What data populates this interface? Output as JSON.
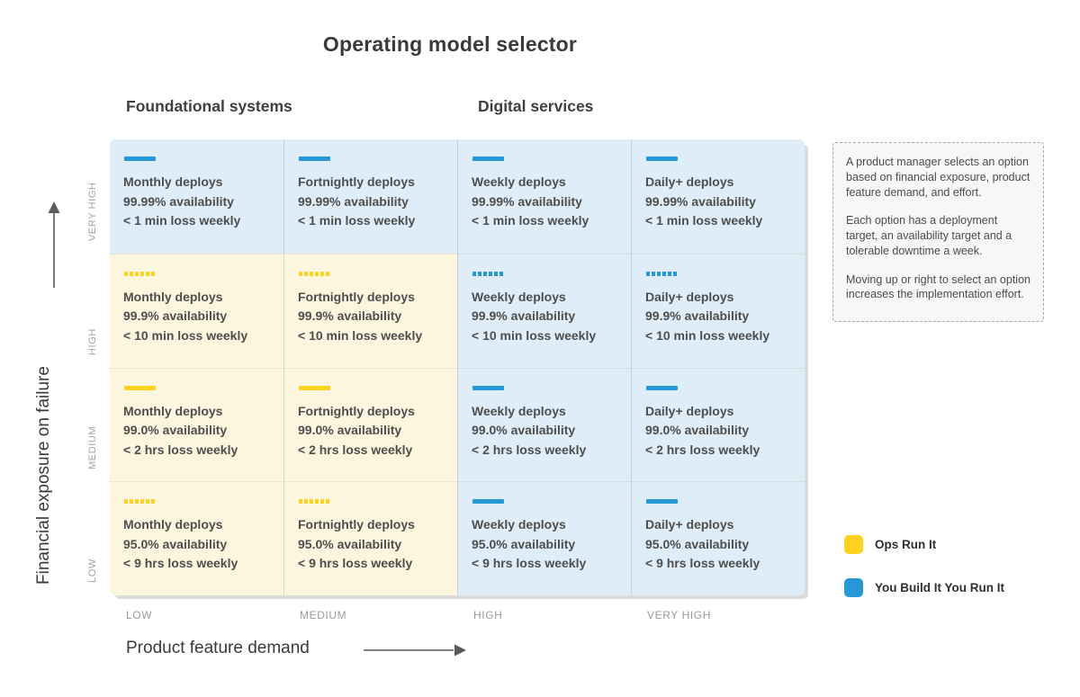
{
  "title": "Operating model selector",
  "group_headers": {
    "foundational": "Foundational systems",
    "digital": "Digital services"
  },
  "x_axis": {
    "label": "Product feature demand",
    "ticks": [
      "LOW",
      "MEDIUM",
      "HIGH",
      "VERY HIGH"
    ]
  },
  "y_axis": {
    "label": "Financial exposure on failure",
    "ticks": [
      "VERY HIGH",
      "HIGH",
      "MEDIUM",
      "LOW"
    ]
  },
  "colors": {
    "ops_bar": "#FFD21E",
    "ops_bg": "#FCF6DF",
    "ybiyri_bar": "#2599D5",
    "ybiyri_bg": "#DEEDF7",
    "arrow": "#5a5a5a"
  },
  "note": {
    "paragraphs": [
      "A product manager selects an option based on financial exposure, product feature demand, and effort.",
      "Each option has a deployment target, an availability target and a tolerable downtime a week.",
      "Moving up or right to select an option increases the implementation effort."
    ]
  },
  "legend": [
    {
      "label": "Ops Run It",
      "color": "#FFD21E"
    },
    {
      "label": "You Build It You Run It",
      "color": "#2599D5"
    }
  ],
  "matrix": {
    "rows": [
      {
        "exposure": "VERY HIGH",
        "cells": [
          {
            "model": "you-build-it-you-run-it",
            "bar": "solid",
            "deploys": "Monthly deploys",
            "availability": "99.99% availability",
            "loss": "< 1 min loss weekly"
          },
          {
            "model": "you-build-it-you-run-it",
            "bar": "solid",
            "deploys": "Fortnightly deploys",
            "availability": "99.99% availability",
            "loss": "< 1 min loss weekly"
          },
          {
            "model": "you-build-it-you-run-it",
            "bar": "solid",
            "deploys": "Weekly deploys",
            "availability": "99.99% availability",
            "loss": "< 1 min loss weekly"
          },
          {
            "model": "you-build-it-you-run-it",
            "bar": "solid",
            "deploys": "Daily+ deploys",
            "availability": "99.99% availability",
            "loss": "< 1 min loss weekly"
          }
        ]
      },
      {
        "exposure": "HIGH",
        "cells": [
          {
            "model": "ops-run-it",
            "bar": "dashed",
            "deploys": "Monthly deploys",
            "availability": "99.9% availability",
            "loss": "< 10 min loss weekly"
          },
          {
            "model": "ops-run-it",
            "bar": "dashed",
            "deploys": "Fortnightly deploys",
            "availability": "99.9% availability",
            "loss": "< 10 min loss weekly"
          },
          {
            "model": "you-build-it-you-run-it",
            "bar": "dashed",
            "deploys": "Weekly deploys",
            "availability": "99.9% availability",
            "loss": "< 10 min loss weekly"
          },
          {
            "model": "you-build-it-you-run-it",
            "bar": "dashed",
            "deploys": "Daily+ deploys",
            "availability": "99.9% availability",
            "loss": "< 10 min loss weekly"
          }
        ]
      },
      {
        "exposure": "MEDIUM",
        "cells": [
          {
            "model": "ops-run-it",
            "bar": "solid",
            "deploys": "Monthly deploys",
            "availability": "99.0% availability",
            "loss": "< 2 hrs loss weekly"
          },
          {
            "model": "ops-run-it",
            "bar": "solid",
            "deploys": "Fortnightly deploys",
            "availability": "99.0% availability",
            "loss": "< 2 hrs loss weekly"
          },
          {
            "model": "you-build-it-you-run-it",
            "bar": "solid",
            "deploys": "Weekly deploys",
            "availability": "99.0% availability",
            "loss": "< 2 hrs loss weekly"
          },
          {
            "model": "you-build-it-you-run-it",
            "bar": "solid",
            "deploys": "Daily+ deploys",
            "availability": "99.0% availability",
            "loss": "< 2 hrs loss weekly"
          }
        ]
      },
      {
        "exposure": "LOW",
        "cells": [
          {
            "model": "ops-run-it",
            "bar": "dashed",
            "deploys": "Monthly deploys",
            "availability": "95.0% availability",
            "loss": "< 9 hrs loss weekly"
          },
          {
            "model": "ops-run-it",
            "bar": "dashed",
            "deploys": "Fortnightly deploys",
            "availability": "95.0% availability",
            "loss": "< 9 hrs loss weekly"
          },
          {
            "model": "you-build-it-you-run-it",
            "bar": "solid",
            "deploys": "Weekly deploys",
            "availability": "95.0% availability",
            "loss": "< 9 hrs loss weekly"
          },
          {
            "model": "you-build-it-you-run-it",
            "bar": "solid",
            "deploys": "Daily+ deploys",
            "availability": "95.0% availability",
            "loss": "< 9 hrs loss weekly"
          }
        ]
      }
    ]
  }
}
